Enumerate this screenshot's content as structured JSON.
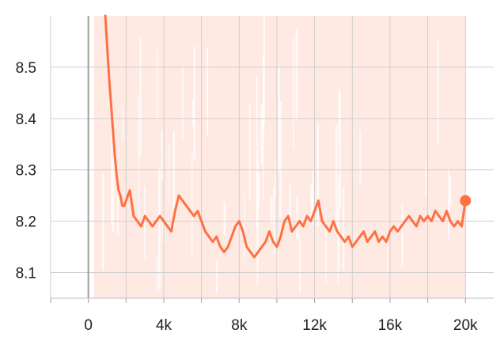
{
  "chart_data": {
    "type": "line",
    "title": "",
    "xlabel": "",
    "ylabel": "",
    "xlim": [
      -2000,
      21500
    ],
    "ylim": [
      8.05,
      8.6
    ],
    "x_ticks": [
      0,
      4000,
      8000,
      12000,
      16000,
      20000
    ],
    "x_tick_labels": [
      "0",
      "4k",
      "8k",
      "12k",
      "16k",
      "20k"
    ],
    "y_ticks": [
      8.1,
      8.2,
      8.3,
      8.4,
      8.5
    ],
    "y_tick_labels": [
      "8.1",
      "8.2",
      "8.3",
      "8.4",
      "8.5"
    ],
    "grid": true,
    "colors": {
      "smoothed": "#ff7043",
      "raw": "#ffd9cc",
      "grid": "#cfcfcf",
      "zero_axis": "#9e9e9e",
      "tick_text": "#212121"
    },
    "series": [
      {
        "style": "smoothed",
        "x": [
          900,
          1100,
          1200,
          1300,
          1400,
          1500,
          1600,
          1700,
          1800,
          1900,
          2000,
          2200,
          2400,
          2600,
          2800,
          3000,
          3200,
          3400,
          3600,
          3800,
          4000,
          4200,
          4400,
          4600,
          4800,
          5000,
          5200,
          5400,
          5600,
          5800,
          6000,
          6200,
          6400,
          6600,
          6800,
          7000,
          7200,
          7400,
          7600,
          7800,
          8000,
          8200,
          8400,
          8600,
          8800,
          9000,
          9200,
          9400,
          9600,
          9800,
          10000,
          10200,
          10400,
          10600,
          10800,
          11000,
          11200,
          11400,
          11600,
          11800,
          12000,
          12200,
          12400,
          12600,
          12800,
          13000,
          13200,
          13400,
          13600,
          13800,
          14000,
          14200,
          14400,
          14600,
          14800,
          15000,
          15200,
          15400,
          15600,
          15800,
          16000,
          16200,
          16400,
          16600,
          16800,
          17000,
          17200,
          17400,
          17600,
          17800,
          18000,
          18200,
          18400,
          18600,
          18800,
          19000,
          19200,
          19400,
          19600,
          19800,
          20000
        ],
        "values": [
          8.6,
          8.48,
          8.43,
          8.38,
          8.33,
          8.29,
          8.26,
          8.25,
          8.23,
          8.23,
          8.24,
          8.26,
          8.21,
          8.2,
          8.19,
          8.21,
          8.2,
          8.19,
          8.2,
          8.21,
          8.2,
          8.19,
          8.18,
          8.22,
          8.25,
          8.24,
          8.23,
          8.22,
          8.21,
          8.22,
          8.2,
          8.18,
          8.17,
          8.16,
          8.17,
          8.15,
          8.14,
          8.15,
          8.17,
          8.19,
          8.2,
          8.18,
          8.15,
          8.14,
          8.13,
          8.14,
          8.15,
          8.16,
          8.18,
          8.16,
          8.15,
          8.17,
          8.2,
          8.21,
          8.18,
          8.19,
          8.2,
          8.19,
          8.21,
          8.2,
          8.22,
          8.24,
          8.2,
          8.19,
          8.18,
          8.2,
          8.18,
          8.17,
          8.16,
          8.17,
          8.15,
          8.16,
          8.17,
          8.18,
          8.16,
          8.17,
          8.18,
          8.16,
          8.17,
          8.16,
          8.18,
          8.19,
          8.18,
          8.19,
          8.2,
          8.21,
          8.2,
          8.19,
          8.21,
          8.2,
          8.21,
          8.2,
          8.22,
          8.21,
          8.2,
          8.22,
          8.2,
          8.19,
          8.2,
          8.19,
          8.24
        ]
      }
    ],
    "raw_band": {
      "style": "raw",
      "x_start": 300,
      "x_end": 20000,
      "low": 8.05,
      "high": 8.6
    }
  }
}
